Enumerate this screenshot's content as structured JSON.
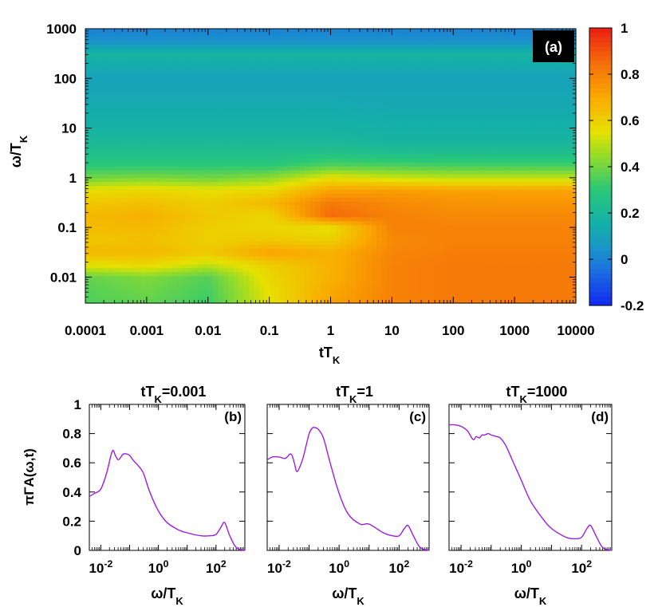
{
  "chart_data": [
    {
      "type": "heatmap",
      "panel_label": "(a)",
      "xlabel_main": "tT",
      "xlabel_sub": "K",
      "ylabel_main": "ω/T",
      "ylabel_sub": "K",
      "x_scale": "log",
      "y_scale": "log",
      "xlim": [
        0.0001,
        10000
      ],
      "ylim": [
        0.003,
        1000
      ],
      "x_ticks": [
        0.0001,
        0.001,
        0.01,
        0.1,
        1,
        10,
        100,
        1000,
        10000
      ],
      "x_tick_labels": [
        "0.0001",
        "0.001",
        "0.01",
        "0.1",
        "1",
        "10",
        "100",
        "1000",
        "10000"
      ],
      "y_ticks": [
        0.01,
        0.1,
        1,
        10,
        100,
        1000
      ],
      "y_tick_labels": [
        "0.01",
        "0.1",
        "1",
        "10",
        "100",
        "1000"
      ],
      "colorbar": {
        "range": [
          -0.2,
          1
        ],
        "ticks": [
          -0.2,
          0,
          0.2,
          0.4,
          0.6,
          0.8,
          1
        ],
        "tick_labels": [
          "-0.2",
          "0",
          "0.2",
          "0.4",
          "0.6",
          "0.8",
          "1"
        ]
      },
      "log_omega": [
        -2.5,
        -2.25,
        -2.0,
        -1.75,
        -1.5,
        -1.25,
        -1.0,
        -0.75,
        -0.5,
        -0.25,
        0.0,
        0.25,
        0.5,
        0.75,
        1.0,
        1.25,
        1.5,
        1.75,
        2.0,
        2.25,
        2.5,
        2.75,
        3.0
      ],
      "log_t": [
        -4,
        -3,
        -2,
        -1,
        0,
        1,
        2,
        3,
        4
      ],
      "values": [
        [
          0.35,
          0.38,
          0.33,
          0.55,
          0.72,
          0.8,
          0.82,
          0.82,
          0.82
        ],
        [
          0.36,
          0.4,
          0.34,
          0.56,
          0.7,
          0.8,
          0.82,
          0.82,
          0.82
        ],
        [
          0.38,
          0.42,
          0.36,
          0.58,
          0.68,
          0.8,
          0.82,
          0.82,
          0.82
        ],
        [
          0.55,
          0.58,
          0.5,
          0.6,
          0.68,
          0.8,
          0.82,
          0.82,
          0.82
        ],
        [
          0.66,
          0.66,
          0.62,
          0.72,
          0.68,
          0.79,
          0.81,
          0.81,
          0.81
        ],
        [
          0.62,
          0.64,
          0.6,
          0.62,
          0.6,
          0.78,
          0.8,
          0.8,
          0.8
        ],
        [
          0.65,
          0.66,
          0.6,
          0.58,
          0.55,
          0.8,
          0.8,
          0.8,
          0.8
        ],
        [
          0.66,
          0.68,
          0.62,
          0.58,
          0.86,
          0.8,
          0.78,
          0.78,
          0.78
        ],
        [
          0.62,
          0.64,
          0.6,
          0.66,
          0.82,
          0.78,
          0.76,
          0.75,
          0.75
        ],
        [
          0.56,
          0.58,
          0.56,
          0.58,
          0.72,
          0.73,
          0.72,
          0.72,
          0.72
        ],
        [
          0.4,
          0.42,
          0.4,
          0.44,
          0.56,
          0.52,
          0.5,
          0.5,
          0.5
        ],
        [
          0.3,
          0.3,
          0.3,
          0.3,
          0.36,
          0.35,
          0.34,
          0.34,
          0.34
        ],
        [
          0.24,
          0.24,
          0.24,
          0.24,
          0.26,
          0.24,
          0.24,
          0.24,
          0.24
        ],
        [
          0.2,
          0.2,
          0.2,
          0.2,
          0.2,
          0.18,
          0.18,
          0.18,
          0.18
        ],
        [
          0.17,
          0.17,
          0.17,
          0.17,
          0.17,
          0.16,
          0.16,
          0.16,
          0.16
        ],
        [
          0.15,
          0.15,
          0.15,
          0.15,
          0.15,
          0.14,
          0.14,
          0.14,
          0.14
        ],
        [
          0.13,
          0.13,
          0.13,
          0.13,
          0.13,
          0.12,
          0.12,
          0.12,
          0.12
        ],
        [
          0.11,
          0.11,
          0.11,
          0.11,
          0.11,
          0.11,
          0.11,
          0.11,
          0.11
        ],
        [
          0.1,
          0.1,
          0.1,
          0.1,
          0.1,
          0.1,
          0.1,
          0.1,
          0.1
        ],
        [
          0.13,
          0.13,
          0.13,
          0.13,
          0.13,
          0.13,
          0.13,
          0.13,
          0.13
        ],
        [
          0.18,
          0.18,
          0.18,
          0.18,
          0.18,
          0.18,
          0.18,
          0.18,
          0.18
        ],
        [
          0.04,
          0.04,
          0.04,
          0.04,
          0.04,
          0.04,
          0.04,
          0.04,
          0.04
        ],
        [
          0.0,
          0.0,
          0.0,
          0.0,
          0.0,
          0.0,
          0.0,
          0.0,
          0.0
        ]
      ]
    },
    {
      "type": "line",
      "panel_label": "(b)",
      "title_main": "tT",
      "title_sub": "K",
      "title_rest": "=0.001",
      "xlabel_main": "ω/T",
      "xlabel_sub": "K",
      "ylabel": "πΓA(ω,t)",
      "x_scale": "log",
      "xlim": [
        0.004,
        1000
      ],
      "ylim": [
        0,
        1
      ],
      "y_ticks": [
        0,
        0.2,
        0.4,
        0.6,
        0.8,
        1
      ],
      "y_tick_labels": [
        "0",
        "0.2",
        "0.4",
        "0.6",
        "0.8",
        "1"
      ],
      "x_ticks": [
        0.01,
        1,
        100
      ],
      "x_tick_base": [
        "10",
        "10",
        "10"
      ],
      "x_tick_exp": [
        "-2",
        "0",
        "2"
      ],
      "color": "#9a1fe0",
      "x": [
        0.004,
        0.006,
        0.01,
        0.016,
        0.025,
        0.032,
        0.04,
        0.05,
        0.06,
        0.08,
        0.1,
        0.13,
        0.16,
        0.2,
        0.3,
        0.5,
        1,
        2,
        5,
        10,
        30,
        60,
        100,
        150,
        200,
        300,
        500,
        1000
      ],
      "y": [
        0.37,
        0.39,
        0.42,
        0.53,
        0.68,
        0.65,
        0.62,
        0.64,
        0.66,
        0.66,
        0.65,
        0.62,
        0.6,
        0.58,
        0.53,
        0.4,
        0.27,
        0.19,
        0.14,
        0.12,
        0.1,
        0.1,
        0.11,
        0.16,
        0.19,
        0.1,
        0.02,
        0.0
      ]
    },
    {
      "type": "line",
      "panel_label": "(c)",
      "title_main": "tT",
      "title_sub": "K",
      "title_rest": "=1",
      "xlabel_main": "ω/T",
      "xlabel_sub": "K",
      "x_scale": "log",
      "xlim": [
        0.004,
        1000
      ],
      "ylim": [
        0,
        1
      ],
      "x_ticks": [
        0.01,
        1,
        100
      ],
      "x_tick_base": [
        "10",
        "10",
        "10"
      ],
      "x_tick_exp": [
        "-2",
        "0",
        "2"
      ],
      "color": "#9a1fe0",
      "x": [
        0.004,
        0.006,
        0.01,
        0.016,
        0.025,
        0.032,
        0.04,
        0.06,
        0.08,
        0.1,
        0.13,
        0.16,
        0.2,
        0.3,
        0.5,
        1,
        2,
        5,
        10,
        30,
        60,
        100,
        150,
        200,
        300,
        500,
        1000
      ],
      "y": [
        0.62,
        0.64,
        0.64,
        0.63,
        0.66,
        0.6,
        0.54,
        0.62,
        0.72,
        0.8,
        0.84,
        0.84,
        0.83,
        0.77,
        0.6,
        0.39,
        0.25,
        0.18,
        0.18,
        0.12,
        0.1,
        0.1,
        0.15,
        0.17,
        0.1,
        0.02,
        0.0
      ]
    },
    {
      "type": "line",
      "panel_label": "(d)",
      "title_main": "tT",
      "title_sub": "K",
      "title_rest": "=1000",
      "xlabel_main": "ω/T",
      "xlabel_sub": "K",
      "x_scale": "log",
      "xlim": [
        0.004,
        1000
      ],
      "ylim": [
        0,
        1
      ],
      "x_ticks": [
        0.01,
        1,
        100
      ],
      "x_tick_base": [
        "10",
        "10",
        "10"
      ],
      "x_tick_exp": [
        "-2",
        "0",
        "2"
      ],
      "color": "#9a1fe0",
      "x": [
        0.004,
        0.006,
        0.01,
        0.016,
        0.025,
        0.032,
        0.04,
        0.05,
        0.06,
        0.08,
        0.1,
        0.15,
        0.2,
        0.3,
        0.5,
        1,
        2,
        5,
        10,
        30,
        60,
        100,
        150,
        200,
        300,
        500,
        1000
      ],
      "y": [
        0.86,
        0.86,
        0.85,
        0.82,
        0.76,
        0.78,
        0.77,
        0.79,
        0.79,
        0.8,
        0.79,
        0.78,
        0.77,
        0.72,
        0.62,
        0.48,
        0.34,
        0.22,
        0.15,
        0.09,
        0.08,
        0.09,
        0.15,
        0.17,
        0.1,
        0.02,
        0.0
      ]
    }
  ]
}
